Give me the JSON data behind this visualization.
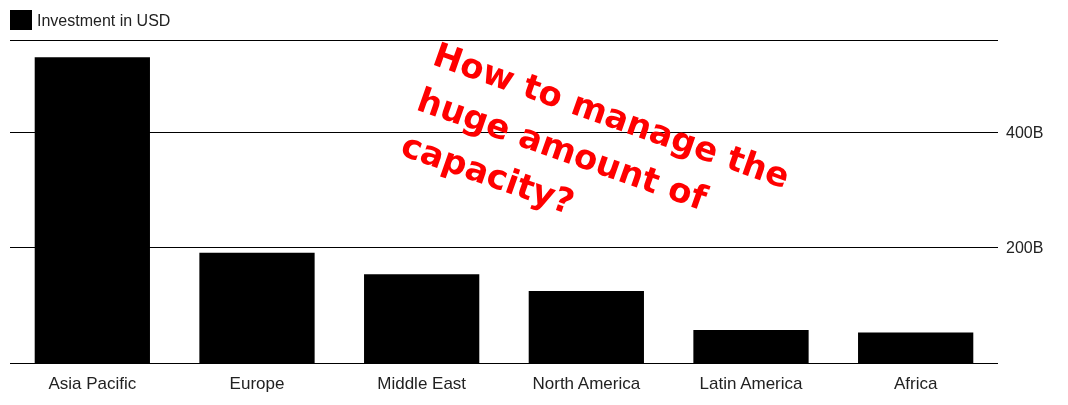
{
  "chart_data": {
    "type": "bar",
    "categories": [
      "Asia Pacific",
      "Europe",
      "Middle East",
      "North America",
      "Latin America",
      "Africa"
    ],
    "series": [
      {
        "name": "Investment in USD",
        "color": "#000000",
        "values": [
          530,
          191,
          154,
          125,
          57,
          53
        ]
      }
    ],
    "ylim": [
      0,
      560
    ],
    "yticks": [
      {
        "value": 200,
        "label": "200B"
      },
      {
        "value": 400,
        "label": "400B"
      }
    ],
    "grid": "y",
    "legend": "top left",
    "annotations": [
      "How to manage the huge amount of capacity?"
    ]
  }
}
